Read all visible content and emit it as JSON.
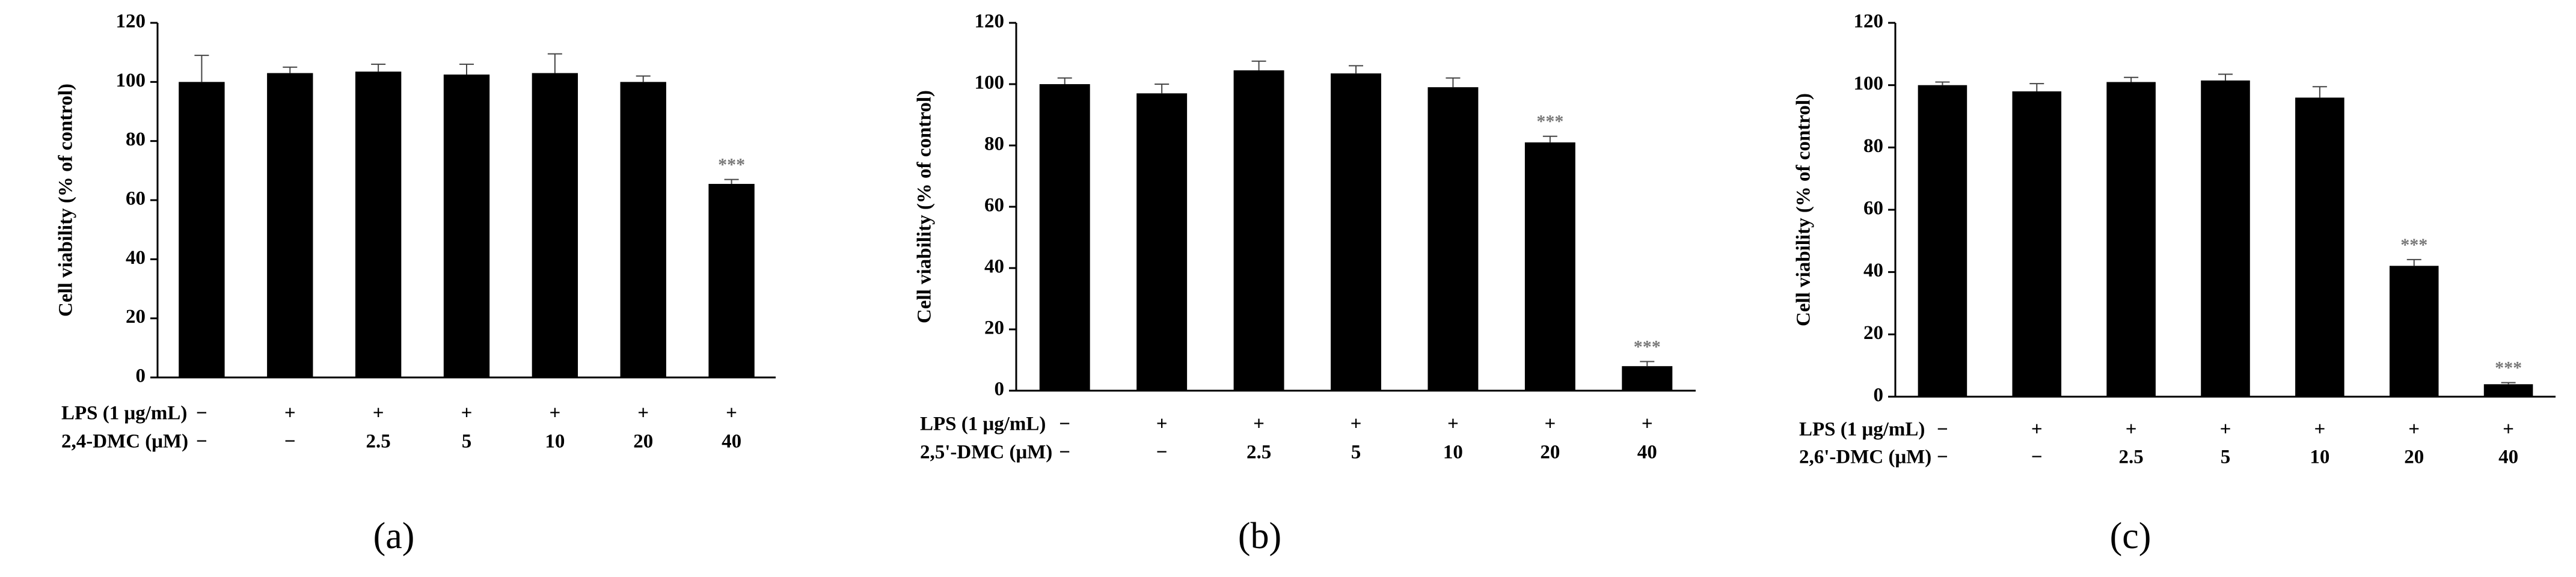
{
  "chart_data": [
    {
      "type": "bar",
      "label": "(a)",
      "ylabel": "Cell viability (% of control)",
      "ylim": [
        0,
        120
      ],
      "yticks": [
        0,
        20,
        40,
        60,
        80,
        100,
        120
      ],
      "color": "#000000",
      "values": [
        100,
        103,
        103.5,
        102.5,
        103,
        100,
        65.5
      ],
      "errors": [
        9,
        2,
        2.5,
        3.5,
        6.5,
        2,
        1.5
      ],
      "annotations": [
        null,
        null,
        null,
        null,
        null,
        null,
        "***"
      ],
      "rows": [
        {
          "label": "LPS (1 μg/mL)",
          "cells": [
            "−",
            "+",
            "+",
            "+",
            "+",
            "+",
            "+"
          ]
        },
        {
          "label": "2,4-DMC (μM)",
          "cells": [
            "−",
            "−",
            "2.5",
            "5",
            "10",
            "20",
            "40"
          ]
        }
      ]
    },
    {
      "type": "bar",
      "label": "(b)",
      "ylabel": "Cell viability (% of control)",
      "ylim": [
        0,
        120
      ],
      "yticks": [
        0,
        20,
        40,
        60,
        80,
        100,
        120
      ],
      "color": "#000000",
      "values": [
        100,
        97,
        104.5,
        103.5,
        99,
        81,
        8
      ],
      "errors": [
        2,
        3,
        3,
        2.5,
        3,
        2,
        1.5
      ],
      "annotations": [
        null,
        null,
        null,
        null,
        null,
        "***",
        "***"
      ],
      "rows": [
        {
          "label": "LPS (1 μg/mL)",
          "cells": [
            "−",
            "+",
            "+",
            "+",
            "+",
            "+",
            "+"
          ]
        },
        {
          "label": "2,5'-DMC (μM)",
          "cells": [
            "−",
            "−",
            "2.5",
            "5",
            "10",
            "20",
            "40"
          ]
        }
      ]
    },
    {
      "type": "bar",
      "label": "(c)",
      "ylabel": "Cell viability (% of control)",
      "ylim": [
        0,
        120
      ],
      "yticks": [
        0,
        20,
        40,
        60,
        80,
        100,
        120
      ],
      "color": "#000000",
      "values": [
        100,
        98,
        101,
        101.5,
        96,
        42,
        4
      ],
      "errors": [
        1,
        2.5,
        1.5,
        2,
        3.5,
        2,
        0.5
      ],
      "annotations": [
        null,
        null,
        null,
        null,
        null,
        "***",
        "***"
      ],
      "rows": [
        {
          "label": "LPS (1 μg/mL)",
          "cells": [
            "−",
            "+",
            "+",
            "+",
            "+",
            "+",
            "+"
          ]
        },
        {
          "label": "2,6'-DMC (μM)",
          "cells": [
            "−",
            "−",
            "2.5",
            "5",
            "10",
            "20",
            "40"
          ]
        }
      ]
    }
  ]
}
